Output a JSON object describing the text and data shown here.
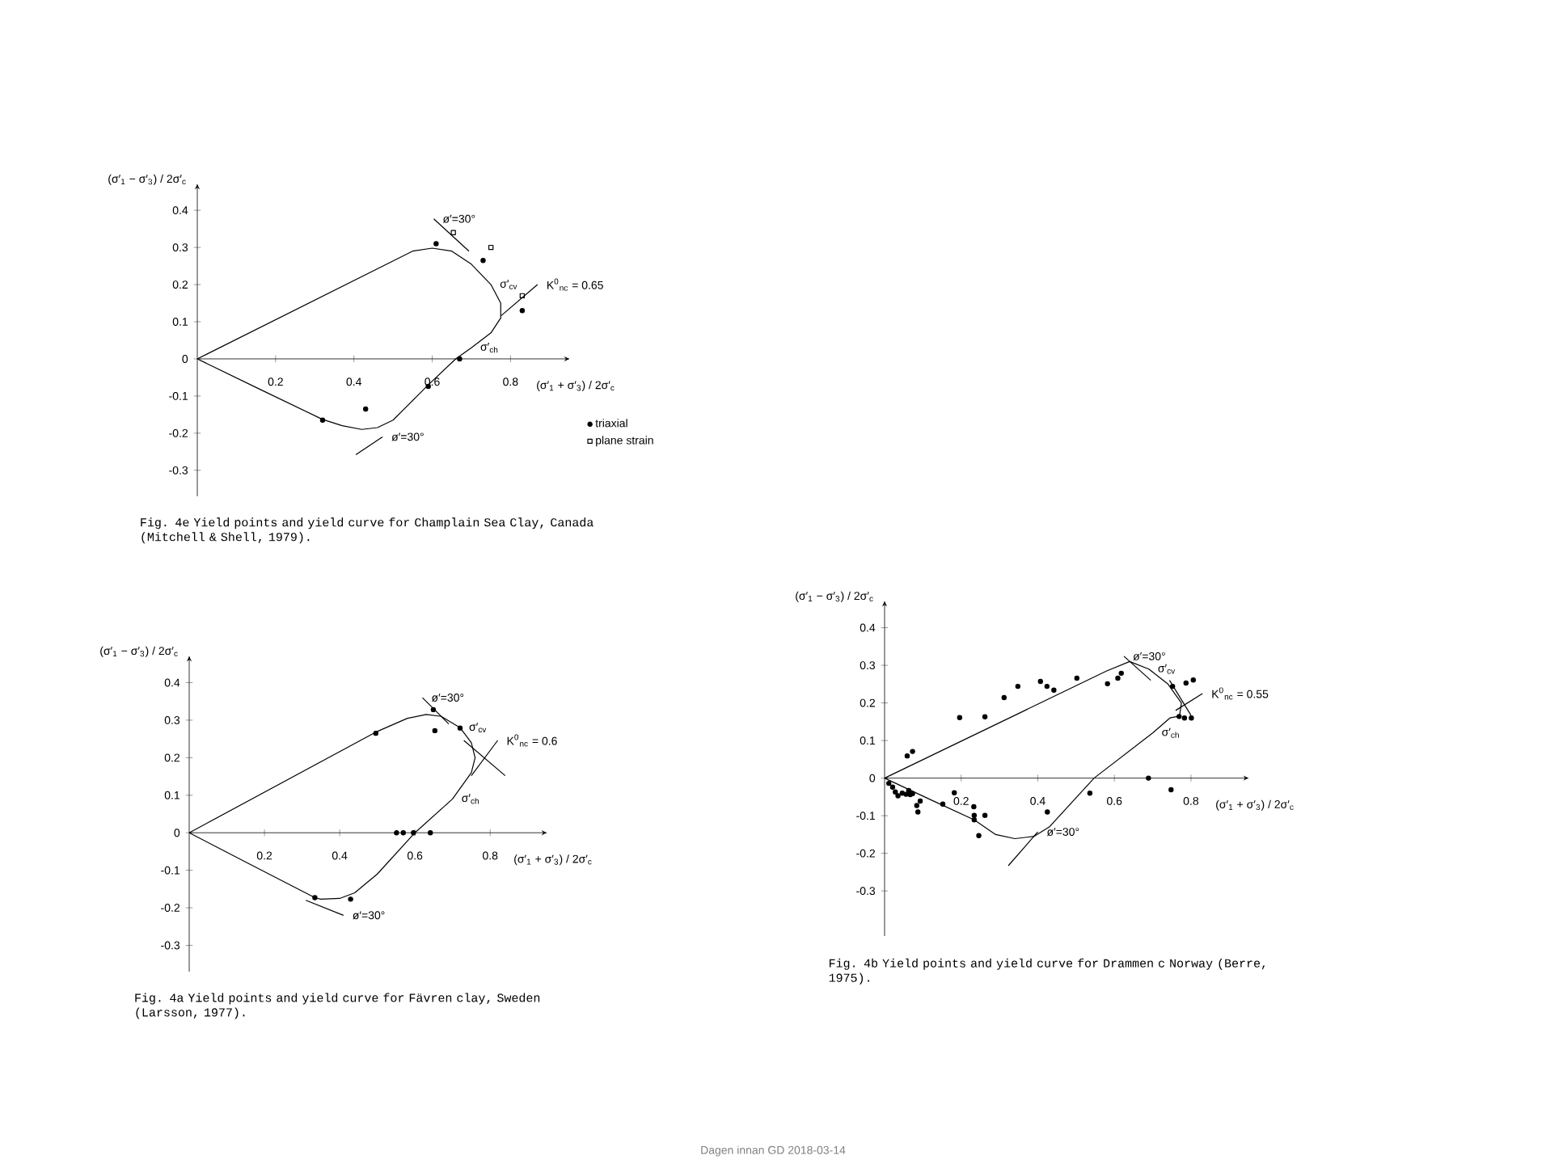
{
  "chart_data": [
    {
      "type": "scatter",
      "title": "Fig. 4e   Yield points and yield curve for Champlain Sea Clay, Canada (Mitchell & Shell, 1979).",
      "xlabel": "(σ′$_{1}$ + σ′$_{3}$) / 2σ′$_{c}$",
      "ylabel": "(σ′$_{1}$ − σ′$_{3}$) / 2σ′$_{c}$",
      "xlim": [
        0,
        0.95
      ],
      "ylim": [
        -0.37,
        0.47
      ],
      "xticks": [
        0.2,
        0.4,
        0.6,
        0.8
      ],
      "yticks": [
        -0.3,
        -0.2,
        -0.1,
        0,
        0.1,
        0.2,
        0.3,
        0.4
      ],
      "legend": "bottom right",
      "series": [
        {
          "name": "triaxial",
          "type": "scatter",
          "marker": "circle",
          "color": "#000000",
          "x": [
            0.61,
            0.73,
            0.83,
            0.67,
            0.59,
            0.43,
            0.32
          ],
          "values": [
            0.31,
            0.265,
            0.13,
            0.0,
            -0.074,
            -0.135,
            -0.165
          ]
        },
        {
          "name": "plane strain",
          "type": "scatter",
          "marker": "square",
          "color": "#000000",
          "x": [
            0.654,
            0.75,
            0.83
          ],
          "values": [
            0.34,
            0.3,
            0.17
          ]
        },
        {
          "type": "line",
          "marker": "none",
          "color": "#000000",
          "x": [
            0,
            0.55,
            0.6,
            0.65,
            0.7,
            0.75,
            0.775,
            0.775,
            0.75,
            0.7,
            0.66,
            0.59,
            0.5,
            0.46,
            0.42,
            0.37,
            0.32
          ],
          "values": [
            0,
            0.29,
            0.298,
            0.29,
            0.255,
            0.2,
            0.15,
            0.11,
            0.07,
            0.03,
            0.0,
            -0.07,
            -0.165,
            -0.185,
            -0.19,
            -0.18,
            -0.163
          ]
        },
        {
          "type": "line",
          "marker": "none",
          "color": "#000000",
          "x": [
            0.32,
            0.16,
            0
          ],
          "values": [
            -0.163,
            -0.082,
            0
          ]
        },
        {
          "type": "line",
          "marker": "none",
          "color": "#000000",
          "x": [
            0.604,
            0.694
          ],
          "values": [
            0.377,
            0.29
          ]
        },
        {
          "type": "line",
          "marker": "none",
          "color": "#000000",
          "x": [
            0.405,
            0.473
          ],
          "values": [
            -0.258,
            -0.21
          ]
        },
        {
          "type": "line",
          "marker": "none",
          "color": "#000000",
          "x": [
            0.776,
            0.869
          ],
          "values": [
            0.116,
            0.2
          ]
        }
      ],
      "annotations": [
        {
          "text": "ø′=30°",
          "x": 0.604,
          "y": 0.377
        },
        {
          "text": "ø′=30°",
          "x": 0.473,
          "y": -0.21
        },
        {
          "text": "σ′$_{cv}$",
          "x": 0.75,
          "y": 0.2
        },
        {
          "text": "σ′$_{ch}$",
          "x": 0.7,
          "y": 0.03
        },
        {
          "text": "K$^{0}$$_{nc}$ = 0.65",
          "x": 0.869,
          "y": 0.2
        }
      ]
    },
    {
      "type": "scatter",
      "title": "Fig. 4a   Yield points and yield curve for Fävren clay, Sweden (Larsson, 1977).",
      "xlabel": "(σ′$_{1}$ + σ′$_{3}$) / 2σ′$_{c}$",
      "ylabel": "(σ′$_{1}$ − σ′$_{3}$) / 2σ′$_{c}$",
      "xlim": [
        0,
        0.95
      ],
      "ylim": [
        -0.37,
        0.47
      ],
      "xticks": [
        0.2,
        0.4,
        0.6,
        0.8
      ],
      "yticks": [
        -0.3,
        -0.2,
        -0.1,
        0,
        0.1,
        0.2,
        0.3,
        0.4
      ],
      "series": [
        {
          "type": "scatter",
          "marker": "circle",
          "color": "#000000",
          "x": [
            0.496,
            0.649,
            0.653,
            0.72,
            0.551,
            0.569,
            0.596,
            0.641,
            0.334,
            0.429
          ],
          "values": [
            0.265,
            0.328,
            0.272,
            0.279,
            0,
            0,
            0,
            0,
            -0.173,
            -0.177
          ]
        },
        {
          "type": "line",
          "marker": "none",
          "color": "#000000",
          "x": [
            0,
            0.5,
            0.58,
            0.63,
            0.67,
            0.72,
            0.75,
            0.76,
            0.75,
            0.7,
            0.6,
            0.5,
            0.44,
            0.4,
            0.35,
            0.334
          ],
          "values": [
            0,
            0.27,
            0.305,
            0.315,
            0.31,
            0.28,
            0.24,
            0.2,
            0.16,
            0.09,
            0,
            -0.11,
            -0.16,
            -0.175,
            -0.177,
            -0.173
          ]
        },
        {
          "type": "line",
          "marker": "none",
          "color": "#000000",
          "x": [
            0.334,
            0.167,
            0
          ],
          "values": [
            -0.173,
            -0.087,
            0
          ]
        },
        {
          "type": "line",
          "marker": "none",
          "color": "#000000",
          "x": [
            0.62,
            0.69
          ],
          "values": [
            0.36,
            0.29
          ]
        },
        {
          "type": "line",
          "marker": "none",
          "color": "#000000",
          "x": [
            0.31,
            0.41
          ],
          "values": [
            -0.18,
            -0.22
          ]
        },
        {
          "type": "line",
          "marker": "none",
          "color": "#000000",
          "x": [
            0.73,
            0.84
          ],
          "values": [
            0.246,
            0.152
          ]
        },
        {
          "type": "line",
          "marker": "none",
          "color": "#000000",
          "x": [
            0.75,
            0.82
          ],
          "values": [
            0.152,
            0.246
          ]
        }
      ],
      "annotations": [
        {
          "text": "ø′=30°",
          "x": 0.62,
          "y": 0.36
        },
        {
          "text": "ø′=30°",
          "x": 0.41,
          "y": -0.22
        },
        {
          "text": "σ′$_{cv}$",
          "x": 0.72,
          "y": 0.28
        },
        {
          "text": "σ′$_{ch}$",
          "x": 0.7,
          "y": 0.09
        },
        {
          "text": "K$^{0}$$_{nc}$ = 0.6",
          "x": 0.82,
          "y": 0.246
        }
      ]
    },
    {
      "type": "scatter",
      "title": "Fig. 4b   Yield points and yield curve for Drammen c Norway (Berre, 1975).",
      "xlabel": "(σ′$_{1}$ + σ′$_{3}$) / 2σ′$_{c}$",
      "ylabel": "(σ′$_{1}$ − σ′$_{3}$) / 2σ′$_{c}$",
      "xlim": [
        0,
        0.95
      ],
      "ylim": [
        -0.42,
        0.47
      ],
      "xticks": [
        0.2,
        0.4,
        0.6,
        0.8
      ],
      "yticks": [
        -0.3,
        -0.2,
        -0.1,
        0,
        0.1,
        0.2,
        0.3,
        0.4
      ],
      "series": [
        {
          "type": "scatter",
          "marker": "circle",
          "color": "#000000",
          "x": [
            0.059,
            0.073,
            0.196,
            0.262,
            0.312,
            0.348,
            0.407,
            0.424,
            0.442,
            0.502,
            0.582,
            0.609,
            0.618,
            0.752,
            0.787,
            0.806,
            0.769,
            0.783,
            0.801,
            0.011,
            0.021,
            0.028,
            0.035,
            0.046,
            0.056,
            0.063,
            0.067,
            0.073,
            0.084,
            0.093,
            0.087,
            0.152,
            0.182,
            0.233,
            0.234,
            0.234,
            0.246,
            0.262,
            0.425,
            0.536,
            0.689,
            0.748
          ],
          "values": [
            0.059,
            0.071,
            0.161,
            0.163,
            0.214,
            0.244,
            0.257,
            0.244,
            0.234,
            0.266,
            0.251,
            0.266,
            0.279,
            0.244,
            0.253,
            0.261,
            0.164,
            0.16,
            0.16,
            -0.014,
            -0.024,
            -0.037,
            -0.047,
            -0.04,
            -0.043,
            -0.033,
            -0.044,
            -0.041,
            -0.073,
            -0.061,
            -0.09,
            -0.069,
            -0.039,
            -0.076,
            -0.099,
            -0.111,
            -0.153,
            -0.099,
            -0.09,
            -0.04,
            0,
            -0.031
          ]
        },
        {
          "type": "line",
          "marker": "none",
          "color": "#000000",
          "x": [
            0,
            0.58,
            0.64,
            0.69,
            0.74,
            0.775,
            0.77,
            0.745,
            0.7,
            0.547,
            0.43,
            0.39,
            0.34,
            0.29,
            0.234
          ],
          "values": [
            0,
            0.285,
            0.31,
            0.29,
            0.25,
            0.2,
            0.165,
            0.16,
            0.12,
            0,
            -0.13,
            -0.155,
            -0.161,
            -0.15,
            -0.111
          ]
        },
        {
          "type": "line",
          "marker": "none",
          "color": "#000000",
          "x": [
            0.234,
            0.117,
            0
          ],
          "values": [
            -0.111,
            -0.056,
            0
          ]
        },
        {
          "type": "line",
          "marker": "none",
          "color": "#000000",
          "x": [
            0.625,
            0.695
          ],
          "values": [
            0.324,
            0.26
          ]
        },
        {
          "type": "line",
          "marker": "none",
          "color": "#000000",
          "x": [
            0.323,
            0.4
          ],
          "values": [
            -0.233,
            -0.143
          ]
        },
        {
          "type": "line",
          "marker": "none",
          "color": "#000000",
          "x": [
            0.744,
            0.8
          ],
          "values": [
            0.26,
            0.167
          ]
        },
        {
          "type": "line",
          "marker": "none",
          "color": "#000000",
          "x": [
            0.76,
            0.83
          ],
          "values": [
            0.18,
            0.225
          ]
        }
      ],
      "annotations": [
        {
          "text": "ø′=30°",
          "x": 0.625,
          "y": 0.324
        },
        {
          "text": "ø′=30°",
          "x": 0.4,
          "y": -0.143
        },
        {
          "text": "σ′$_{cv}$",
          "x": 0.69,
          "y": 0.29
        },
        {
          "text": "σ′$_{ch}$",
          "x": 0.7,
          "y": 0.12
        },
        {
          "text": "K$^{0}$$_{nc}$ = 0.55",
          "x": 0.83,
          "y": 0.225
        },
        "Dagen innan GD 2018-03-14"
      ]
    }
  ]
}
